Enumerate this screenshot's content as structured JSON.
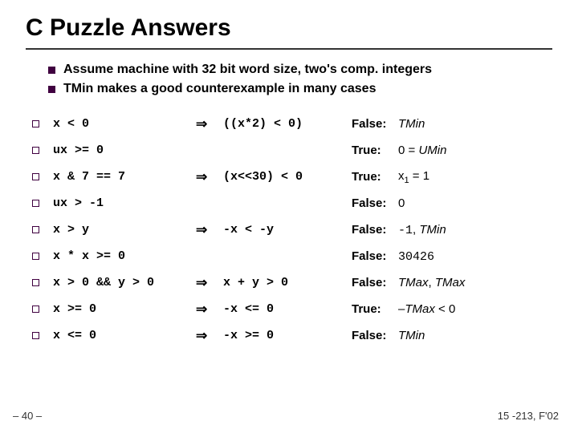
{
  "title": "C Puzzle Answers",
  "intro": {
    "l1": "Assume machine with 32 bit word size, two's comp. integers",
    "l2": "TMin makes a good counterexample in many cases"
  },
  "arrow": "⇒",
  "rows": [
    {
      "left": "x < 0",
      "arrow": true,
      "right": "((x*2) < 0)",
      "verdict": "False:",
      "reason_html": "<i>TMin</i>"
    },
    {
      "left": "ux >= 0",
      "arrow": false,
      "right": "",
      "verdict": "True:",
      "reason_html": "0 = <i>UMin</i>"
    },
    {
      "left": "x & 7 == 7",
      "arrow": true,
      "right": "(x<<30) < 0",
      "verdict": "True:",
      "reason_html": "x<span class=\"sub\">1</span> = 1"
    },
    {
      "left": "ux > -1",
      "arrow": false,
      "right": "",
      "verdict": "False:",
      "reason_html": "0"
    },
    {
      "left": "x > y",
      "arrow": true,
      "right": "-x < -y",
      "verdict": "False:",
      "reason_html": "<span class=\"mono\">-1</span>, <i>TMin</i>"
    },
    {
      "left": "x * x >= 0",
      "arrow": false,
      "right": "",
      "verdict": "False:",
      "reason_html": "<span class=\"mono\">30426</span>"
    },
    {
      "left": "x > 0 && y > 0",
      "arrow": true,
      "right": "x + y > 0",
      "verdict": "False:",
      "reason_html": "<i>TMax</i>, <i>TMax</i>"
    },
    {
      "left": "x >= 0",
      "arrow": true,
      "right": "-x <= 0",
      "verdict": "True:",
      "reason_html": "–<i>TMax</i> < 0"
    },
    {
      "left": "x <= 0",
      "arrow": true,
      "right": "-x >= 0",
      "verdict": "False:",
      "reason_html": "<i>TMin</i>"
    }
  ],
  "footer": {
    "left": "– 40 –",
    "right": "15 -213, F'02"
  },
  "colors": {
    "bullet": "#400040"
  }
}
